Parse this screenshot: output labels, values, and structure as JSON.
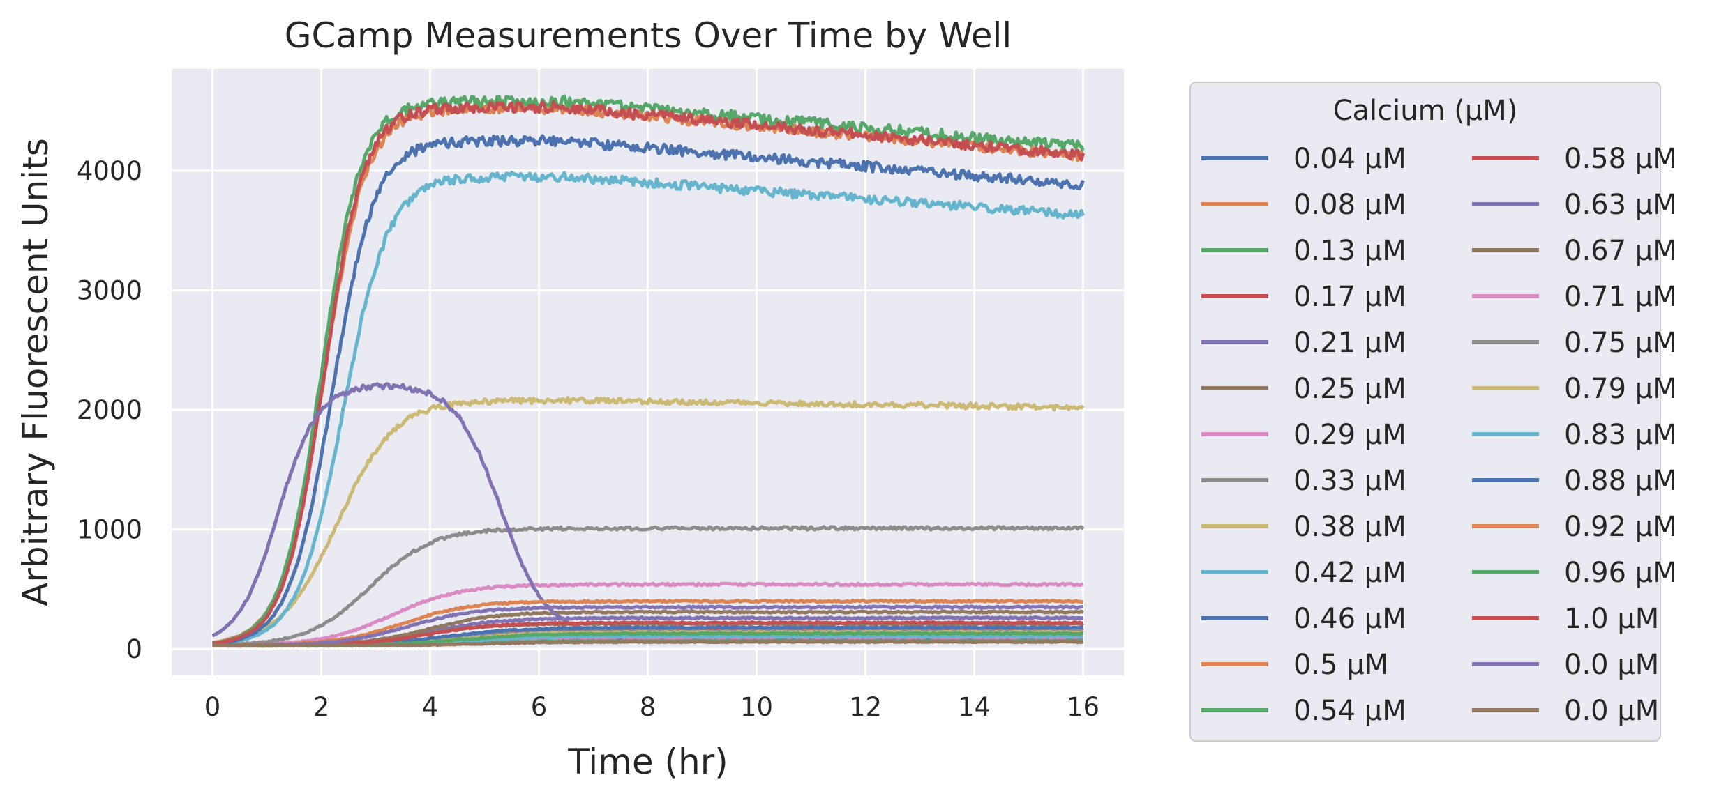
{
  "chart_data": {
    "type": "line",
    "title": "GCamp Measurements Over Time by Well",
    "xlabel": "Time (hr)",
    "ylabel": "Arbitrary Fluorescent Units",
    "xlim": [
      -0.75,
      16.75
    ],
    "ylim": [
      -220,
      4850
    ],
    "xticks": [
      0,
      2,
      4,
      6,
      8,
      10,
      12,
      14,
      16
    ],
    "yticks": [
      0,
      1000,
      2000,
      3000,
      4000
    ],
    "grid": true,
    "background": "#eaeaf2",
    "legend": {
      "title": "Calcium (μM)",
      "placement": "outside right",
      "columns": 2
    },
    "series": [
      {
        "name": "0.04 μM",
        "color": "#4c72b0",
        "shape": "sig",
        "plateau": 80,
        "k": 0.9,
        "t0": 5
      },
      {
        "name": "0.08 μM",
        "color": "#dd8452",
        "shape": "sig",
        "plateau": 120,
        "k": 0.9,
        "t0": 4.8
      },
      {
        "name": "0.13 μM",
        "color": "#55a868",
        "shape": "sig",
        "plateau": 70,
        "k": 0.9,
        "t0": 4.8
      },
      {
        "name": "0.17 μM",
        "color": "#c44e52",
        "shape": "sig",
        "plateau": 160,
        "k": 0.9,
        "t0": 4.5
      },
      {
        "name": "0.21 μM",
        "color": "#8172b3",
        "shape": "sig",
        "plateau": 260,
        "k": 1.0,
        "t0": 4.0
      },
      {
        "name": "0.25 μM",
        "color": "#937860",
        "shape": "sig",
        "plateau": 310,
        "k": 1.0,
        "t0": 4.0
      },
      {
        "name": "0.29 μM",
        "color": "#da8bc3",
        "shape": "sig",
        "plateau": 540,
        "k": 1.0,
        "t0": 3.3
      },
      {
        "name": "0.33 μM",
        "color": "#8c8c8c",
        "shape": "sig",
        "plateau": 1010,
        "k": 1.1,
        "t0": 2.9
      },
      {
        "name": "0.38 μM",
        "color": "#ccb974",
        "shape": "sig",
        "plateau": 2080,
        "k": 1.2,
        "t0": 2.3,
        "decay": 60
      },
      {
        "name": "0.42 μM",
        "color": "#64b5cd",
        "shape": "sig",
        "plateau": 3950,
        "k": 1.5,
        "t0": 2.4,
        "decay": 320
      },
      {
        "name": "0.46 μM",
        "color": "#4c72b0",
        "shape": "sig",
        "plateau": 4250,
        "k": 1.6,
        "t0": 2.2,
        "decay": 370
      },
      {
        "name": "0.5 μM",
        "color": "#dd8452",
        "shape": "sig",
        "plateau": 4520,
        "k": 1.6,
        "t0": 2.05,
        "decay": 400
      },
      {
        "name": "0.54 μM",
        "color": "#55a868",
        "shape": "sig",
        "plateau": 4580,
        "k": 1.7,
        "t0": 2.0,
        "decay": 380
      },
      {
        "name": "0.58 μM",
        "color": "#c44e52",
        "shape": "sig",
        "plateau": 4530,
        "k": 1.7,
        "t0": 2.05,
        "decay": 400
      },
      {
        "name": "0.63 μM",
        "color": "#8172b3",
        "shape": "peak",
        "plateau": 2220,
        "k": 1.7,
        "t0": 1.2,
        "final": 120
      },
      {
        "name": "0.67 μM",
        "color": "#937860",
        "shape": "sig",
        "plateau": 210,
        "k": 1.0,
        "t0": 3.8
      },
      {
        "name": "0.71 μM",
        "color": "#da8bc3",
        "shape": "sig",
        "plateau": 100,
        "k": 0.9,
        "t0": 4.5
      },
      {
        "name": "0.75 μM",
        "color": "#8c8c8c",
        "shape": "sig",
        "plateau": 150,
        "k": 0.9,
        "t0": 4.4
      },
      {
        "name": "0.79 μM",
        "color": "#ccb974",
        "shape": "sig",
        "plateau": 140,
        "k": 0.9,
        "t0": 4.6
      },
      {
        "name": "0.83 μM",
        "color": "#64b5cd",
        "shape": "sig",
        "plateau": 110,
        "k": 0.9,
        "t0": 4.8
      },
      {
        "name": "0.88 μM",
        "color": "#4c72b0",
        "shape": "sig",
        "plateau": 180,
        "k": 0.9,
        "t0": 4.3
      },
      {
        "name": "0.92 μM",
        "color": "#dd8452",
        "shape": "sig",
        "plateau": 400,
        "k": 1.0,
        "t0": 3.5
      },
      {
        "name": "0.96 μM",
        "color": "#55a868",
        "shape": "sig",
        "plateau": 130,
        "k": 0.9,
        "t0": 4.6
      },
      {
        "name": "1.0 μM",
        "color": "#c44e52",
        "shape": "sig",
        "plateau": 220,
        "k": 1.0,
        "t0": 4.0
      },
      {
        "name": "0.0 μM",
        "color": "#8172b3",
        "shape": "sig",
        "plateau": 350,
        "k": 1.0,
        "t0": 3.6
      },
      {
        "name": "0.0 μM",
        "color": "#937860",
        "shape": "sig",
        "plateau": 60,
        "k": 0.9,
        "t0": 5.0
      }
    ]
  }
}
